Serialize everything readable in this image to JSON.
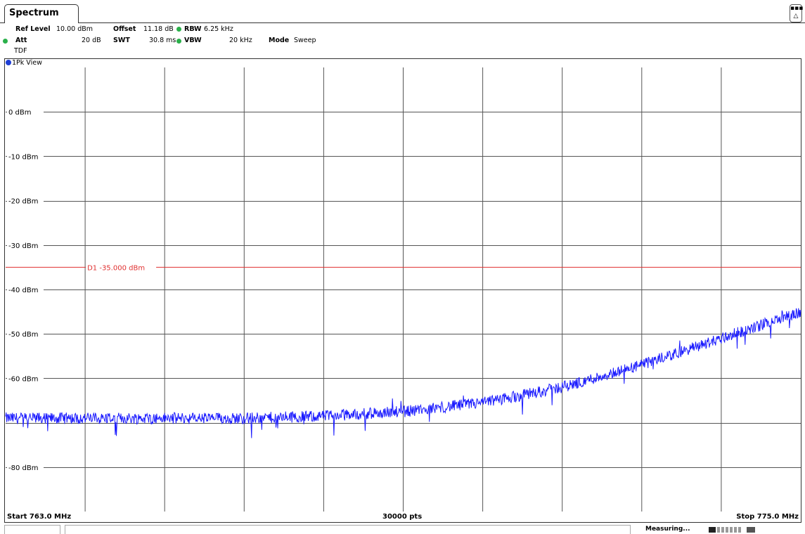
{
  "tab": {
    "label": "Spectrum"
  },
  "settings": {
    "ref_level_label": "Ref Level",
    "ref_level_value": "10.00 dBm",
    "offset_label": "Offset",
    "offset_value": "11.18 dB",
    "rbw_label": "RBW",
    "rbw_value": "6.25 kHz",
    "att_label": "Att",
    "att_value": "20 dB",
    "swt_label": "SWT",
    "swt_value": "30.8 ms",
    "vbw_label": "VBW",
    "vbw_value": "20 kHz",
    "mode_label": "Mode",
    "mode_value": "Sweep",
    "tdf_label": "TDF"
  },
  "view": {
    "title": "1Pk View"
  },
  "footer": {
    "start": "Start 763.0 MHz",
    "points": "30000 pts",
    "stop": "Stop 775.0 MHz"
  },
  "status": {
    "measuring": "Measuring..."
  },
  "colors": {
    "trace": "#1a1aff",
    "display_line": "#e03030",
    "grid": "#555555",
    "status_dot": "#2ab04a",
    "view_dot": "#1f3fd6"
  },
  "chart_data": {
    "type": "line",
    "title": "",
    "xlabel": "",
    "ylabel": "",
    "xlim": [
      763.0,
      775.0
    ],
    "ylim": [
      -90,
      10
    ],
    "y_ticks": [
      "0 dBm",
      "-10 dBm",
      "-20 dBm",
      "-30 dBm",
      "-40 dBm",
      "-50 dBm",
      "-60 dBm",
      "-80 dBm"
    ],
    "y_tick_values": [
      0,
      -10,
      -20,
      -30,
      -40,
      -50,
      -60,
      -80
    ],
    "grid": true,
    "display_line": {
      "label": "D1  -35.000 dBm",
      "value": -35.0
    },
    "series": [
      {
        "x": [
          763.0,
          764.2,
          765.4,
          766.6,
          767.8,
          769.0,
          770.2,
          771.4,
          772.6,
          773.8,
          775.0
        ],
        "values": [
          -69.0,
          -69.0,
          -69.0,
          -69.0,
          -68.5,
          -67.5,
          -65.5,
          -62.0,
          -57.0,
          -51.0,
          -45.0
        ]
      }
    ]
  }
}
